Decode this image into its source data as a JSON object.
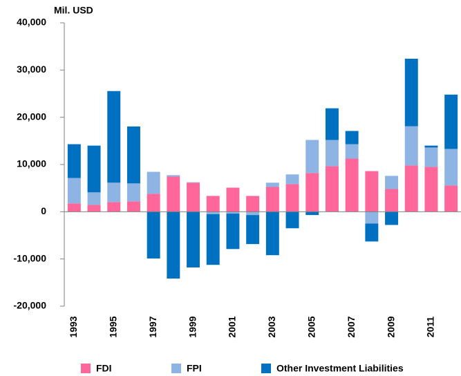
{
  "chart_data": {
    "type": "stacked_bar",
    "ylabel": "Mil. USD",
    "categories": [
      "1993",
      null,
      "1995",
      null,
      "1997",
      null,
      "1999",
      null,
      "2001",
      null,
      "2003",
      null,
      "2005",
      null,
      "2007",
      null,
      "2009",
      null,
      "2011",
      null
    ],
    "series": [
      {
        "name": "FDI",
        "color": "#ff6699",
        "values": [
          1750,
          1450,
          2050,
          2200,
          3800,
          7450,
          6150,
          3350,
          5100,
          3350,
          5250,
          5850,
          8200,
          9650,
          11250,
          8600,
          4800,
          9800,
          9500,
          5550
        ]
      },
      {
        "name": "FPI",
        "color": "#8db4e2",
        "values": [
          5400,
          2650,
          4100,
          3800,
          4650,
          300,
          100,
          -500,
          -400,
          -700,
          900,
          2050,
          7000,
          5550,
          3050,
          -2500,
          2800,
          8300,
          4100,
          7750
        ]
      },
      {
        "name": "Other Investment Liabilities",
        "color": "#0070c0",
        "values": [
          7150,
          9900,
          19400,
          12050,
          -9900,
          -14150,
          -11800,
          -10750,
          -7500,
          -6150,
          -9200,
          -3500,
          -700,
          6700,
          2800,
          -3800,
          -2800,
          14300,
          400,
          11500
        ]
      }
    ],
    "ylim": [
      -20000,
      40000
    ],
    "yticks": [
      {
        "value": -20000,
        "label": "-20,000"
      },
      {
        "value": -10000,
        "label": "-10,000"
      },
      0,
      {
        "value": 10000,
        "label": "10,000"
      },
      {
        "value": 20000,
        "label": "20,000"
      },
      {
        "value": 30000,
        "label": "30,000"
      },
      {
        "value": 40000,
        "label": "40,000"
      }
    ],
    "grid": false,
    "legend": "bottom"
  }
}
